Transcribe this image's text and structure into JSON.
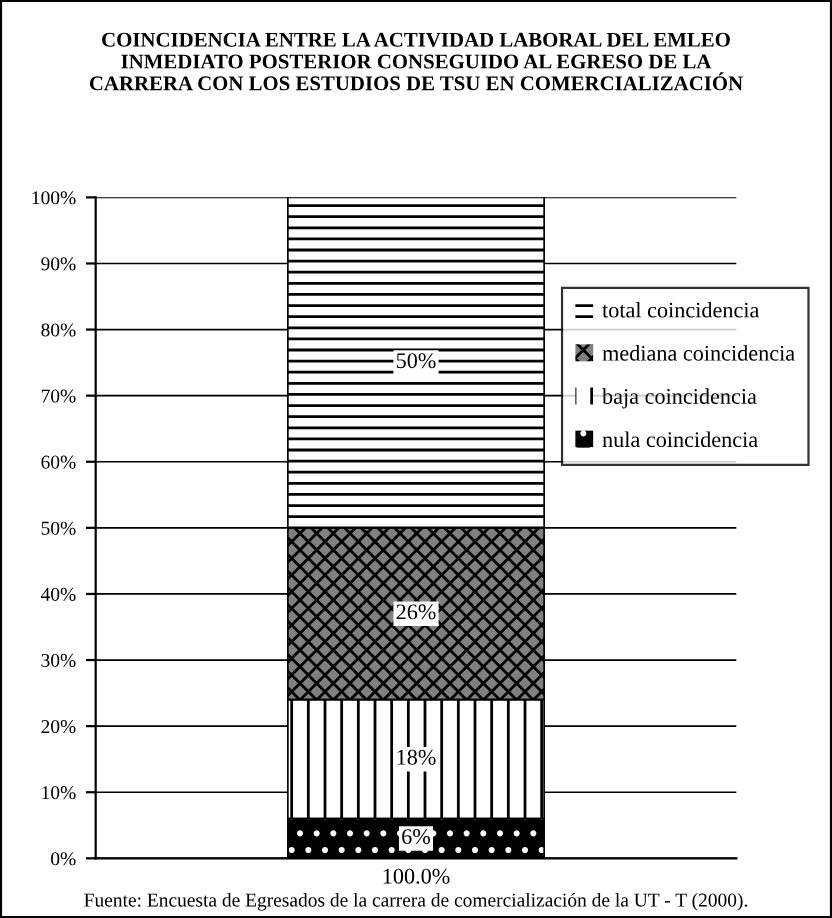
{
  "chart_data": {
    "type": "bar",
    "stacked": true,
    "title": "COINCIDENCIA ENTRE LA ACTIVIDAD LABORAL DEL EMLEO\nINMEDIATO POSTERIOR CONSEGUIDO AL EGRESO DE LA\nCARRERA CON LOS ESTUDIOS DE TSU EN COMERCIALIZACIÓN",
    "categories": [
      "100.0%"
    ],
    "series": [
      {
        "name": "nula coincidencia",
        "color": "#000000",
        "values": [
          6
        ],
        "value_labels": [
          "6%"
        ]
      },
      {
        "name": "baja coincidencia",
        "color": "#ffffff",
        "values": [
          18
        ],
        "value_labels": [
          "18%"
        ]
      },
      {
        "name": "mediana coincidencia",
        "color": "#808080",
        "values": [
          26
        ],
        "value_labels": [
          "26%"
        ]
      },
      {
        "name": "total coincidencia",
        "color": "#ffffff",
        "values": [
          50
        ],
        "value_labels": [
          "50%"
        ]
      }
    ],
    "ylim": [
      0,
      100
    ],
    "yticks": [
      {
        "value": 0,
        "label": "0%"
      },
      {
        "value": 10,
        "label": "10%"
      },
      {
        "value": 20,
        "label": "20%"
      },
      {
        "value": 30,
        "label": "30%"
      },
      {
        "value": 40,
        "label": "40%"
      },
      {
        "value": 50,
        "label": "50%"
      },
      {
        "value": 60,
        "label": "60%"
      },
      {
        "value": 70,
        "label": "70%"
      },
      {
        "value": 80,
        "label": "80%"
      },
      {
        "value": 90,
        "label": "90%"
      },
      {
        "value": 100,
        "label": "100%"
      }
    ],
    "grid": "y",
    "legend": "right",
    "annotations": [
      "Fuente: Encuesta de Egresados de la carrera de comercialización de la UT - T (2000)."
    ]
  }
}
